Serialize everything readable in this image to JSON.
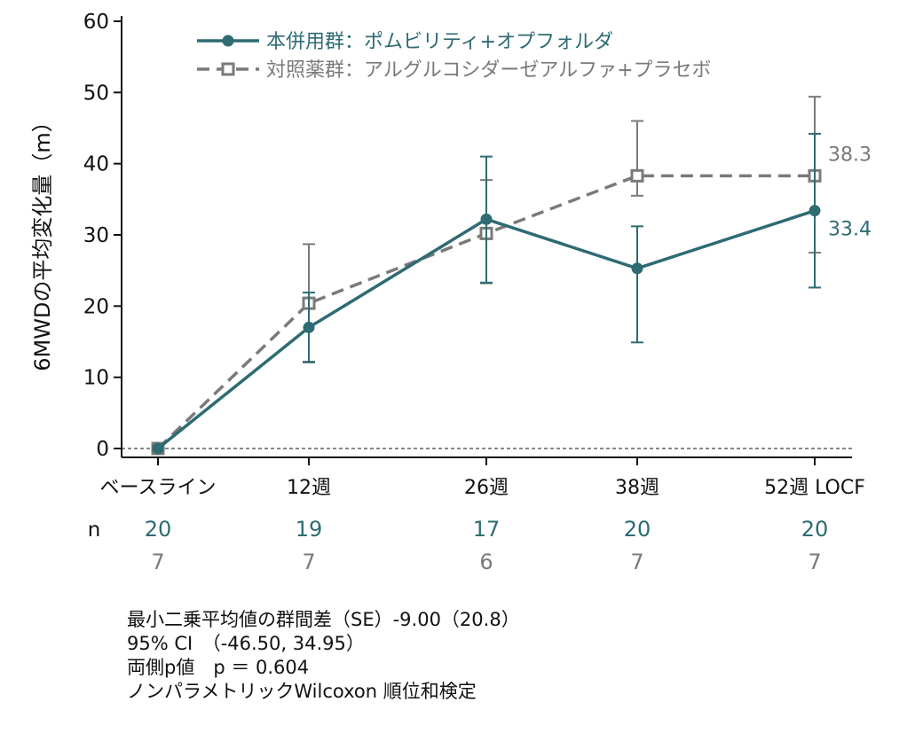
{
  "chart_data": {
    "type": "line",
    "title": "",
    "ylabel": "6MWDの平均変化量（m）",
    "xlabel": "",
    "ylim": [
      0,
      60
    ],
    "yticks": [
      0,
      10,
      20,
      30,
      40,
      50,
      60
    ],
    "grid": false,
    "legend_position": "top-left",
    "baseline_dashed_at": 0,
    "categories": [
      "ベースライン",
      "12週",
      "26週",
      "38週",
      "52週 LOCF"
    ],
    "series": [
      {
        "name": "本併用群：ポムビリティ+オプフォルダ",
        "color": "#2e6b73",
        "line_style": "solid",
        "marker": "circle",
        "values": [
          0,
          17.0,
          32.2,
          25.3,
          33.4
        ],
        "error_upper": [
          0,
          21.9,
          41.0,
          31.2,
          44.2
        ],
        "error_lower": [
          0,
          12.1,
          23.3,
          14.9,
          22.6
        ],
        "end_label": "33.4",
        "n": [
          "20",
          "19",
          "17",
          "20",
          "20"
        ]
      },
      {
        "name": "対照薬群：アルグルコシダーゼアルファ+プラセボ",
        "color": "#7a7a7a",
        "line_style": "dashed",
        "marker": "square",
        "values": [
          0,
          20.4,
          30.2,
          38.3,
          38.3
        ],
        "error_upper": [
          0,
          28.7,
          37.7,
          46.0,
          49.4
        ],
        "error_lower": [
          0,
          12.2,
          23.2,
          35.5,
          27.5
        ],
        "end_label": "38.3",
        "n": [
          "7",
          "7",
          "6",
          "7",
          "7"
        ]
      }
    ],
    "n_label": "n"
  },
  "notes": {
    "line1": "最小二乗平均値の群間差（SE）-9.00（20.8）",
    "line2": "95% CI　（-46.50, 34.95）",
    "line3": "両側p値　p ＝ 0.604",
    "line4": "ノンパラメトリックWilcoxon 順位和検定"
  }
}
